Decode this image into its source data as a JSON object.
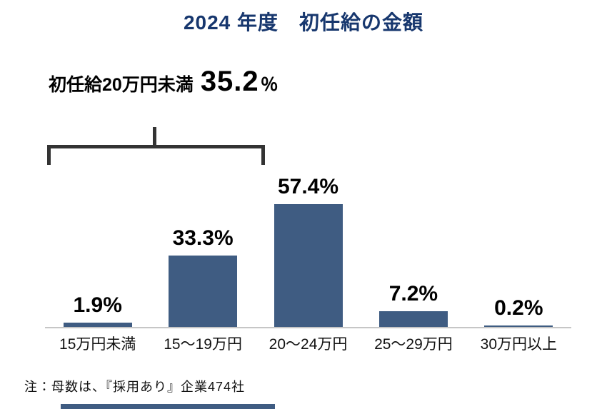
{
  "title": "2024 年度　初任給の金額",
  "annotation": {
    "label": "初任給20万円未満",
    "value": "35.2",
    "percent_sign": "％"
  },
  "chart_data": {
    "type": "bar",
    "title": "2024 年度　初任給の金額",
    "categories": [
      "15万円未満",
      "15〜19万円",
      "20〜24万円",
      "25〜29万円",
      "30万円以上"
    ],
    "values": [
      1.9,
      33.3,
      57.4,
      7.2,
      0.2
    ],
    "value_labels": [
      "1.9%",
      "33.3%",
      "57.4%",
      "7.2%",
      "0.2%"
    ],
    "xlabel": "",
    "ylabel": "",
    "ylim": [
      0,
      60
    ],
    "grid": false,
    "legend": "none",
    "annotation_text": "初任給20万円未満 35.2％",
    "annotation_bracket_span_categories": [
      "15万円未満",
      "15〜19万円"
    ],
    "bar_color": "#3f5c82"
  },
  "note": "注：母数は、『採用あり』企業474社",
  "colors": {
    "bar": "#3f5c82",
    "title": "#17376e",
    "bracket": "#333333",
    "axis": "#c6c6c6"
  }
}
